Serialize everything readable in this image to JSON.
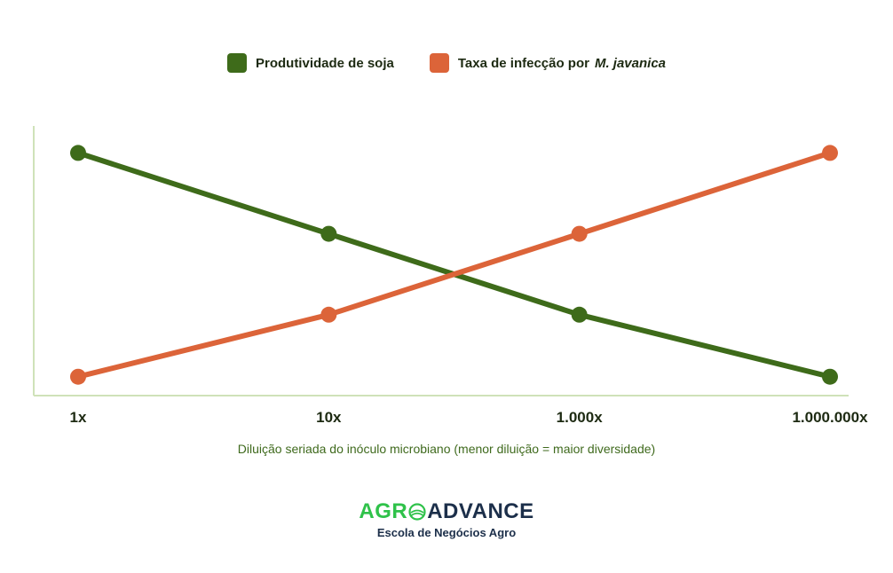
{
  "legend": {
    "series_1_label": "Produtividade de soja",
    "series_2_label_prefix": "Taxa de infecção por",
    "series_2_label_italic": "M. javanica"
  },
  "brand": {
    "part1": "AGR",
    "part2": "ADVANCE",
    "subtitle": "Escola de Negócios Agro"
  },
  "colors": {
    "series_1": "#3e6b1a",
    "series_2": "#dc6439",
    "axis": "#cfe2b9"
  },
  "chart_data": {
    "type": "line",
    "title": "",
    "xlabel": "Diluição seriada do inóculo microbiano (menor diluição = maior diversidade)",
    "ylabel": "",
    "categories": [
      "1x",
      "10x",
      "1.000x",
      "1.000.000x"
    ],
    "series": [
      {
        "name": "Produtividade de soja",
        "color": "#3e6b1a",
        "values": [
          0.9,
          0.6,
          0.3,
          0.07
        ]
      },
      {
        "name": "Taxa de infecção por M. javanica",
        "color": "#dc6439",
        "values": [
          0.07,
          0.3,
          0.6,
          0.9
        ]
      }
    ],
    "ylim": [
      0,
      1
    ],
    "grid": false,
    "legend_position": "top-center",
    "y_tick_labels_shown": false
  }
}
